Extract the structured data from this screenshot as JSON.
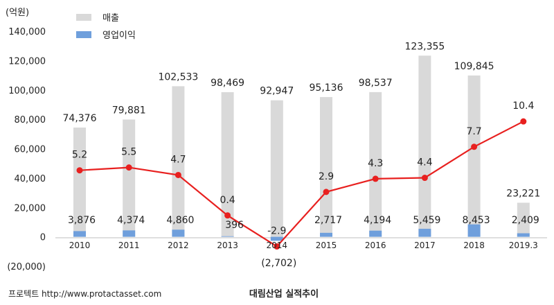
{
  "chart_data": {
    "type": "bar",
    "title": "대림산업 실적추이",
    "unit_label": "(억원)",
    "source": "프로텍트 http://www.protactasset.com",
    "categories": [
      "2010",
      "2011",
      "2012",
      "2013",
      "2014",
      "2015",
      "2016",
      "2017",
      "2018",
      "2019.3"
    ],
    "ylim": [
      -20000,
      140000
    ],
    "y_ticks": [
      {
        "value": 140000,
        "label": "140,000"
      },
      {
        "value": 120000,
        "label": "120,000"
      },
      {
        "value": 100000,
        "label": "100,000"
      },
      {
        "value": 80000,
        "label": "80,000"
      },
      {
        "value": 60000,
        "label": "60,000"
      },
      {
        "value": 40000,
        "label": "40,000"
      },
      {
        "value": 20000,
        "label": "20,000"
      },
      {
        "value": 0,
        "label": "0"
      },
      {
        "value": -20000,
        "label": "(20,000)"
      }
    ],
    "series": [
      {
        "name": "매출",
        "type": "bar",
        "color": "#d9d9d9",
        "values": [
          74376,
          79881,
          102533,
          98469,
          92947,
          95136,
          98537,
          123355,
          109845,
          23221
        ],
        "labels": [
          "74,376",
          "79,881",
          "102,533",
          "98,469",
          "92,947",
          "95,136",
          "98,537",
          "123,355",
          "109,845",
          "23,221"
        ]
      },
      {
        "name": "영업이익",
        "type": "bar",
        "color": "#6f9fdc",
        "values": [
          3876,
          4374,
          4860,
          396,
          -2702,
          2717,
          4194,
          5459,
          8453,
          2409
        ],
        "labels": [
          "3,876",
          "4,374",
          "4,860",
          "396",
          "(2,702)",
          "2,717",
          "4,194",
          "5,459",
          "8,453",
          "2,409"
        ]
      },
      {
        "type": "line",
        "color": "#e8201f",
        "values": [
          5.2,
          5.5,
          4.7,
          0.4,
          -2.9,
          2.9,
          4.3,
          4.4,
          7.7,
          10.4
        ],
        "labels": [
          "5.2",
          "5.5",
          "4.7",
          "0.4",
          "-2.9",
          "2.9",
          "4.3",
          "4.4",
          "7.7",
          "10.4"
        ],
        "ylim": [
          -5,
          20
        ]
      }
    ],
    "legend_position": "top-left",
    "grid": false
  }
}
